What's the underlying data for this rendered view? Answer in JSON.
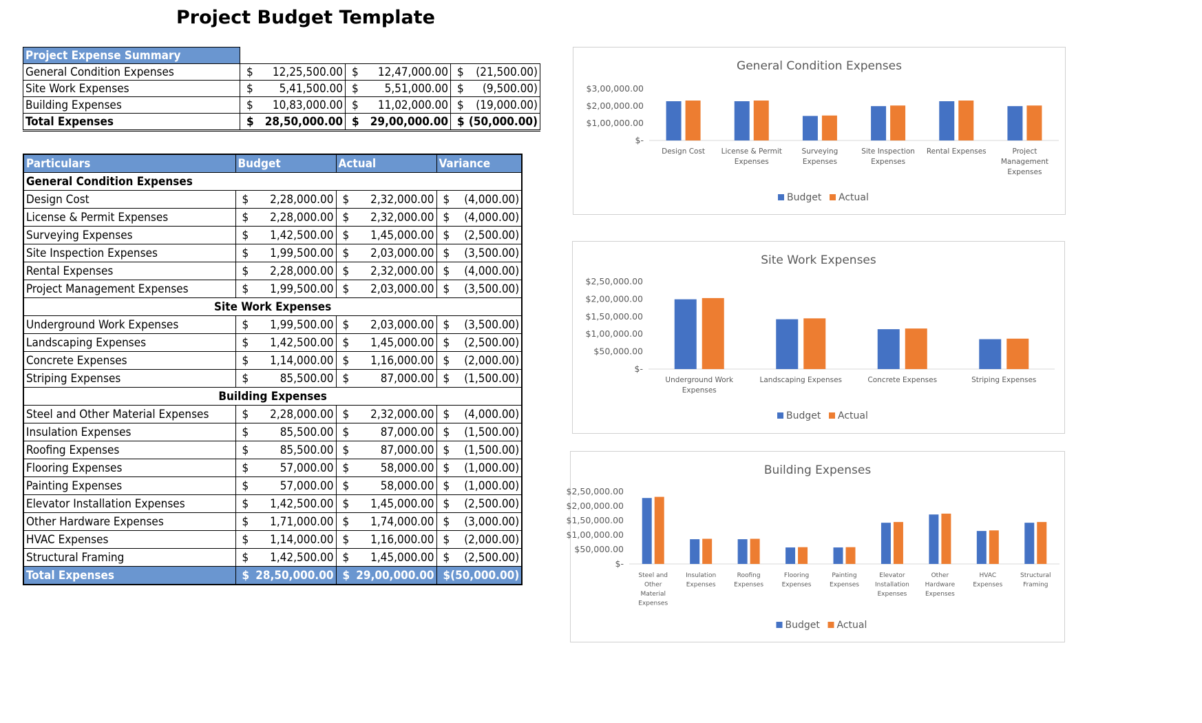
{
  "title": "Project Budget Template",
  "summary": {
    "header": "Project Expense Summary",
    "rows": [
      {
        "label": "General Condition Expenses",
        "budget": "12,25,500.00",
        "actual": "12,47,000.00",
        "variance": "(21,500.00)"
      },
      {
        "label": "Site Work Expenses",
        "budget": "5,41,500.00",
        "actual": "5,51,000.00",
        "variance": "(9,500.00)"
      },
      {
        "label": "Building Expenses",
        "budget": "10,83,000.00",
        "actual": "11,02,000.00",
        "variance": "(19,000.00)"
      }
    ],
    "total": {
      "label": "Total Expenses",
      "budget": "28,50,000.00",
      "actual": "29,00,000.00",
      "variance": "(50,000.00)"
    }
  },
  "detail": {
    "headers": [
      "Particulars",
      "Budget",
      "Actual",
      "Variance"
    ],
    "sections": [
      {
        "name": "General Condition Expenses",
        "rows": [
          {
            "label": "Design Cost",
            "budget": "2,28,000.00",
            "actual": "2,32,000.00",
            "variance": "(4,000.00)"
          },
          {
            "label": "License & Permit Expenses",
            "budget": "2,28,000.00",
            "actual": "2,32,000.00",
            "variance": "(4,000.00)"
          },
          {
            "label": "Surveying Expenses",
            "budget": "1,42,500.00",
            "actual": "1,45,000.00",
            "variance": "(2,500.00)"
          },
          {
            "label": "Site Inspection Expenses",
            "budget": "1,99,500.00",
            "actual": "2,03,000.00",
            "variance": "(3,500.00)"
          },
          {
            "label": "Rental Expenses",
            "budget": "2,28,000.00",
            "actual": "2,32,000.00",
            "variance": "(4,000.00)"
          },
          {
            "label": "Project Management Expenses",
            "budget": "1,99,500.00",
            "actual": "2,03,000.00",
            "variance": "(3,500.00)"
          }
        ]
      },
      {
        "name": "Site Work Expenses",
        "rows": [
          {
            "label": "Underground Work Expenses",
            "budget": "1,99,500.00",
            "actual": "2,03,000.00",
            "variance": "(3,500.00)"
          },
          {
            "label": "Landscaping Expenses",
            "budget": "1,42,500.00",
            "actual": "1,45,000.00",
            "variance": "(2,500.00)"
          },
          {
            "label": "Concrete Expenses",
            "budget": "1,14,000.00",
            "actual": "1,16,000.00",
            "variance": "(2,000.00)"
          },
          {
            "label": "Striping Expenses",
            "budget": "85,500.00",
            "actual": "87,000.00",
            "variance": "(1,500.00)"
          }
        ]
      },
      {
        "name": "Building Expenses",
        "rows": [
          {
            "label": "Steel and Other Material Expenses",
            "budget": "2,28,000.00",
            "actual": "2,32,000.00",
            "variance": "(4,000.00)"
          },
          {
            "label": "Insulation Expenses",
            "budget": "85,500.00",
            "actual": "87,000.00",
            "variance": "(1,500.00)"
          },
          {
            "label": "Roofing Expenses",
            "budget": "85,500.00",
            "actual": "87,000.00",
            "variance": "(1,500.00)"
          },
          {
            "label": "Flooring Expenses",
            "budget": "57,000.00",
            "actual": "58,000.00",
            "variance": "(1,000.00)"
          },
          {
            "label": "Painting Expenses",
            "budget": "57,000.00",
            "actual": "58,000.00",
            "variance": "(1,000.00)"
          },
          {
            "label": "Elevator Installation Expenses",
            "budget": "1,42,500.00",
            "actual": "1,45,000.00",
            "variance": "(2,500.00)"
          },
          {
            "label": "Other Hardware Expenses",
            "budget": "1,71,000.00",
            "actual": "1,74,000.00",
            "variance": "(3,000.00)"
          },
          {
            "label": "HVAC Expenses",
            "budget": "1,14,000.00",
            "actual": "1,16,000.00",
            "variance": "(2,000.00)"
          },
          {
            "label": "Structural Framing",
            "budget": "1,42,500.00",
            "actual": "1,45,000.00",
            "variance": "(2,500.00)"
          }
        ]
      }
    ],
    "total": {
      "label": "Total Expenses",
      "budget": "28,50,000.00",
      "actual": "29,00,000.00",
      "variance": "(50,000.00)"
    }
  },
  "colors": {
    "budget": "#4472c4",
    "actual": "#ed7d31",
    "header": "#6a96d0"
  },
  "chart_data": [
    {
      "type": "bar",
      "title": "General Condition Expenses",
      "categories": [
        [
          "Design Cost"
        ],
        [
          "License & Permit",
          "Expenses"
        ],
        [
          "Surveying",
          "Expenses"
        ],
        [
          "Site Inspection",
          "Expenses"
        ],
        [
          "Rental Expenses"
        ],
        [
          "Project",
          "Management",
          "Expenses"
        ]
      ],
      "series": [
        {
          "name": "Budget",
          "values": [
            228000,
            228000,
            142500,
            199500,
            228000,
            199500
          ]
        },
        {
          "name": "Actual",
          "values": [
            232000,
            232000,
            145000,
            203000,
            232000,
            203000
          ]
        }
      ],
      "ylim": [
        0,
        300000
      ],
      "yticks": [
        [
          "$-",
          0
        ],
        [
          "$1,00,000.00",
          100000
        ],
        [
          "$2,00,000.00",
          200000
        ],
        [
          "$3,00,000.00",
          300000
        ]
      ],
      "legend": "bottom"
    },
    {
      "type": "bar",
      "title": "Site Work Expenses",
      "categories": [
        [
          "Underground Work",
          "Expenses"
        ],
        [
          "Landscaping Expenses"
        ],
        [
          "Concrete Expenses"
        ],
        [
          "Striping Expenses"
        ]
      ],
      "series": [
        {
          "name": "Budget",
          "values": [
            199500,
            142500,
            114000,
            85500
          ]
        },
        {
          "name": "Actual",
          "values": [
            203000,
            145000,
            116000,
            87000
          ]
        }
      ],
      "ylim": [
        0,
        250000
      ],
      "yticks": [
        [
          "$-",
          0
        ],
        [
          "$50,000.00",
          50000
        ],
        [
          "$1,00,000.00",
          100000
        ],
        [
          "$1,50,000.00",
          150000
        ],
        [
          "$2,00,000.00",
          200000
        ],
        [
          "$2,50,000.00",
          250000
        ]
      ],
      "legend": "bottom"
    },
    {
      "type": "bar",
      "title": "Building Expenses",
      "categories": [
        [
          "Steel and",
          "Other",
          "Material",
          "Expenses"
        ],
        [
          "Insulation",
          "Expenses"
        ],
        [
          "Roofing",
          "Expenses"
        ],
        [
          "Flooring",
          "Expenses"
        ],
        [
          "Painting",
          "Expenses"
        ],
        [
          "Elevator",
          "Installation",
          "Expenses"
        ],
        [
          "Other",
          "Hardware",
          "Expenses"
        ],
        [
          "HVAC",
          "Expenses"
        ],
        [
          "Structural",
          "Framing"
        ]
      ],
      "series": [
        {
          "name": "Budget",
          "values": [
            228000,
            85500,
            85500,
            57000,
            57000,
            142500,
            171000,
            114000,
            142500
          ]
        },
        {
          "name": "Actual",
          "values": [
            232000,
            87000,
            87000,
            58000,
            58000,
            145000,
            174000,
            116000,
            145000
          ]
        }
      ],
      "ylim": [
        0,
        250000
      ],
      "yticks": [
        [
          "$-",
          0
        ],
        [
          "$50,000.00",
          50000
        ],
        [
          "$1,00,000.00",
          100000
        ],
        [
          "$1,50,000.00",
          150000
        ],
        [
          "$2,00,000.00",
          200000
        ],
        [
          "$2,50,000.00",
          250000
        ]
      ],
      "legend": "bottom"
    }
  ]
}
